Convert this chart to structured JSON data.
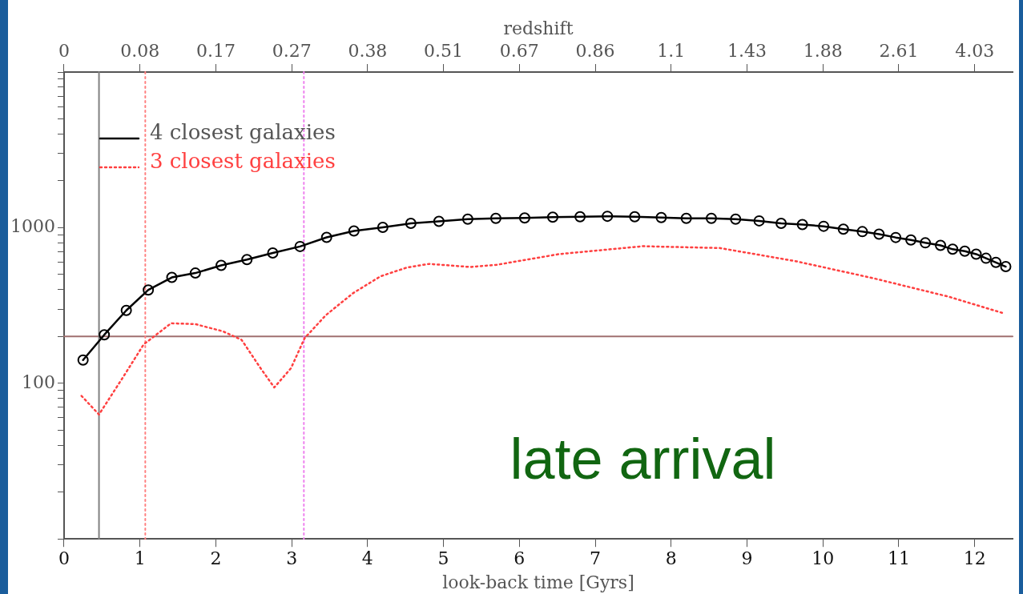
{
  "chart_data": {
    "type": "line",
    "xlabel": "look-back time [Gyrs]",
    "xlim": [
      0,
      12.5
    ],
    "xticks": [
      0,
      1,
      2,
      3,
      4,
      5,
      6,
      7,
      8,
      9,
      10,
      11,
      12
    ],
    "log": "y",
    "ylim": [
      10,
      10000
    ],
    "yticks": [
      {
        "value": 10,
        "label": null
      },
      {
        "value": 20,
        "label": null
      },
      {
        "value": 30,
        "label": null
      },
      {
        "value": 40,
        "label": null
      },
      {
        "value": 50,
        "label": null
      },
      {
        "value": 60,
        "label": null
      },
      {
        "value": 70,
        "label": null
      },
      {
        "value": 80,
        "label": null
      },
      {
        "value": 90,
        "label": null
      },
      100,
      {
        "value": 200,
        "label": null
      },
      {
        "value": 300,
        "label": null
      },
      {
        "value": 400,
        "label": null
      },
      {
        "value": 500,
        "label": null
      },
      {
        "value": 600,
        "label": null
      },
      {
        "value": 700,
        "label": null
      },
      {
        "value": 800,
        "label": null
      },
      {
        "value": 900,
        "label": null
      },
      1000,
      {
        "value": 2000,
        "label": null
      },
      {
        "value": 3000,
        "label": null
      },
      {
        "value": 4000,
        "label": null
      },
      {
        "value": 5000,
        "label": null
      },
      {
        "value": 6000,
        "label": null
      },
      {
        "value": 7000,
        "label": null
      },
      {
        "value": 8000,
        "label": null
      },
      {
        "value": 9000,
        "label": null
      },
      {
        "value": 10000,
        "label": null
      }
    ],
    "grid": false,
    "legend": "top left",
    "series": [
      {
        "name": "4 closest galaxies",
        "color": "#000000",
        "marker": "circle",
        "line_style": "solid",
        "x": [
          0.25,
          0.53,
          0.82,
          1.11,
          1.42,
          1.73,
          2.07,
          2.41,
          2.75,
          3.11,
          3.46,
          3.82,
          4.2,
          4.57,
          4.94,
          5.32,
          5.69,
          6.07,
          6.44,
          6.8,
          7.16,
          7.52,
          7.87,
          8.2,
          8.53,
          8.85,
          9.16,
          9.45,
          9.73,
          10.01,
          10.27,
          10.52,
          10.74,
          10.96,
          11.16,
          11.35,
          11.55,
          11.71,
          11.87,
          12.02,
          12.15,
          12.28,
          12.41
        ],
        "values": [
          141,
          205,
          294,
          398,
          479,
          511,
          572,
          624,
          688,
          757,
          866,
          953,
          1004,
          1066,
          1099,
          1134,
          1147,
          1155,
          1169,
          1176,
          1184,
          1176,
          1162,
          1147,
          1147,
          1134,
          1106,
          1066,
          1047,
          1021,
          978,
          943,
          908,
          865,
          834,
          799,
          770,
          727,
          706,
          676,
          636,
          598,
          562
        ]
      },
      {
        "name": "3 closest galaxies",
        "color": "#ff4040",
        "marker": "none",
        "line_style": "dotted",
        "x": [
          0.23,
          0.46,
          0.78,
          1.05,
          1.41,
          1.73,
          2.09,
          2.34,
          2.59,
          2.77,
          2.99,
          3.17,
          3.45,
          3.81,
          4.17,
          4.52,
          4.81,
          5.35,
          5.7,
          6.52,
          7.63,
          8.64,
          9.65,
          10.66,
          11.66,
          12.39
        ],
        "values": [
          83,
          63,
          110,
          178,
          243,
          240,
          216,
          190,
          125,
          94,
          125,
          195,
          274,
          380,
          487,
          555,
          585,
          559,
          577,
          676,
          760,
          740,
          608,
          474,
          360,
          281
        ]
      }
    ],
    "ref_lines": [
      {
        "axis": "y",
        "value": 200,
        "color": "#a07070",
        "line_style": "solid"
      },
      {
        "axis": "x",
        "value": 0.46,
        "color": "#808080",
        "line_style": "solid"
      },
      {
        "axis": "x",
        "value": 1.07,
        "color": "#ff8080",
        "line_style": "dotted"
      },
      {
        "axis": "x",
        "value": 3.16,
        "color": "#ee80ee",
        "line_style": "dotted"
      }
    ],
    "annotations": [
      "late arrival",
      "redshift",
      "0",
      "0.08",
      "0.17",
      "0.27",
      "0.38",
      "0.51",
      "0.67",
      "0.86",
      "1.1",
      "1.43",
      "1.88",
      "2.61",
      "4.03"
    ]
  }
}
